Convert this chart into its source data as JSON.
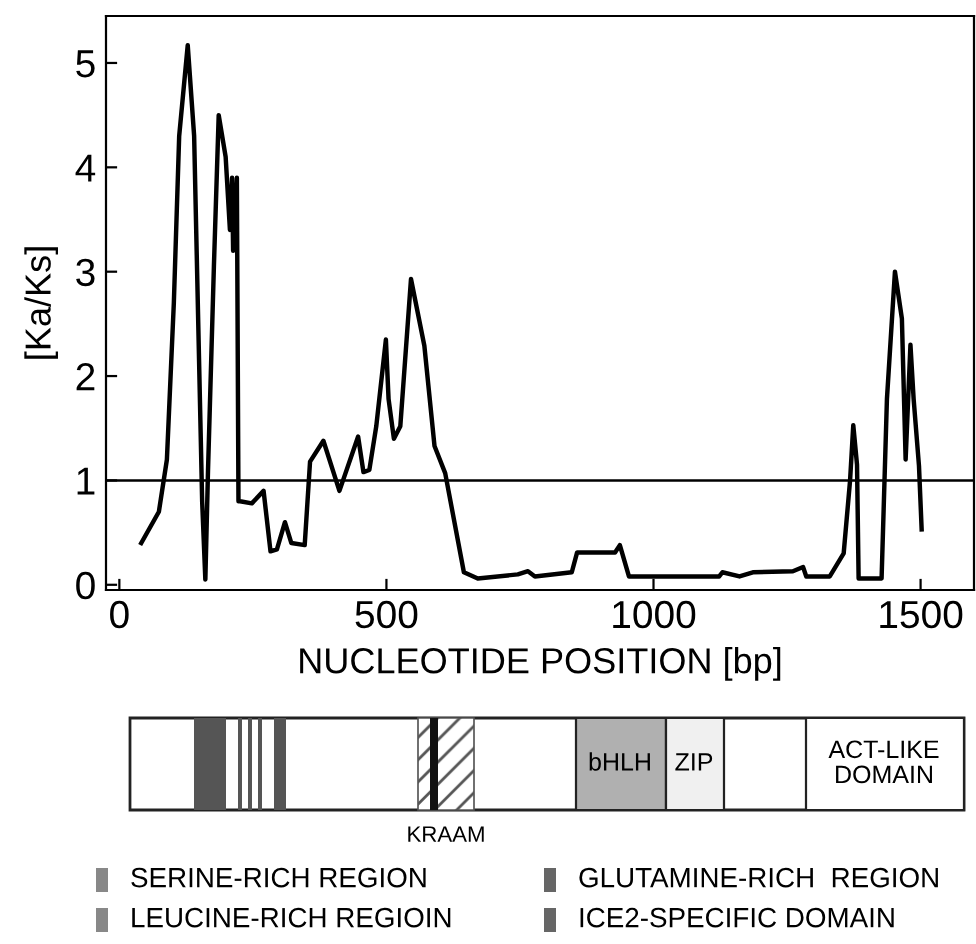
{
  "chart_data": {
    "type": "line",
    "xlabel": "NUCLEOTIDE POSITION [bp]",
    "ylabel": "[Ka/Ks]",
    "xlim": [
      -25,
      1600
    ],
    "ylim": [
      -0.05,
      5.45
    ],
    "xticks": [
      0,
      500,
      1000,
      1500
    ],
    "yticks": [
      0,
      1,
      2,
      3,
      4,
      5
    ],
    "grid": false,
    "legend": false,
    "ref_lines": [
      {
        "axis": "y",
        "value": 1,
        "color": "#000000"
      }
    ],
    "series": [
      {
        "color": "#000000",
        "x": [
          41,
          74,
          89,
          102,
          112,
          128,
          140,
          155,
          161,
          166,
          177,
          186,
          199,
          207,
          211,
          213,
          220,
          223,
          226,
          248,
          270,
          283,
          295,
          310,
          322,
          347,
          357,
          382,
          412,
          447,
          457,
          468,
          481,
          499,
          504,
          514,
          526,
          546,
          571,
          590,
          610,
          645,
          671,
          746,
          765,
          778,
          847,
          857,
          928,
          937,
          954,
          1123,
          1129,
          1161,
          1186,
          1261,
          1280,
          1286,
          1330,
          1356,
          1368,
          1374,
          1381,
          1384,
          1427,
          1437,
          1452,
          1465,
          1472,
          1481,
          1487,
          1497,
          1502
        ],
        "values": [
          0.4,
          0.7,
          1.2,
          2.7,
          4.3,
          5.17,
          4.3,
          0.8,
          0.05,
          1.1,
          3.05,
          4.5,
          4.1,
          3.4,
          3.9,
          3.2,
          3.9,
          0.8,
          0.8,
          0.78,
          0.9,
          0.32,
          0.34,
          0.6,
          0.4,
          0.38,
          1.18,
          1.38,
          0.9,
          1.42,
          1.08,
          1.1,
          1.52,
          2.35,
          1.78,
          1.4,
          1.52,
          2.93,
          2.29,
          1.33,
          1.07,
          0.12,
          0.06,
          0.1,
          0.13,
          0.08,
          0.12,
          0.31,
          0.31,
          0.38,
          0.08,
          0.08,
          0.12,
          0.08,
          0.12,
          0.13,
          0.17,
          0.08,
          0.08,
          0.3,
          1.0,
          1.53,
          1.15,
          0.06,
          0.06,
          1.78,
          3.0,
          2.55,
          1.2,
          2.3,
          1.78,
          1.14,
          0.53
        ]
      }
    ],
    "annotations": [
      "bHLH",
      "ZIP",
      "ACT-LIKE DOMAIN",
      "KRAAM",
      "SERINE-RICH REGION",
      "GLUTAMINE-RICH  REGION",
      "LEUCINE-RICH REGIOIN",
      "ICE2-SPECIFIC DOMAIN"
    ]
  }
}
